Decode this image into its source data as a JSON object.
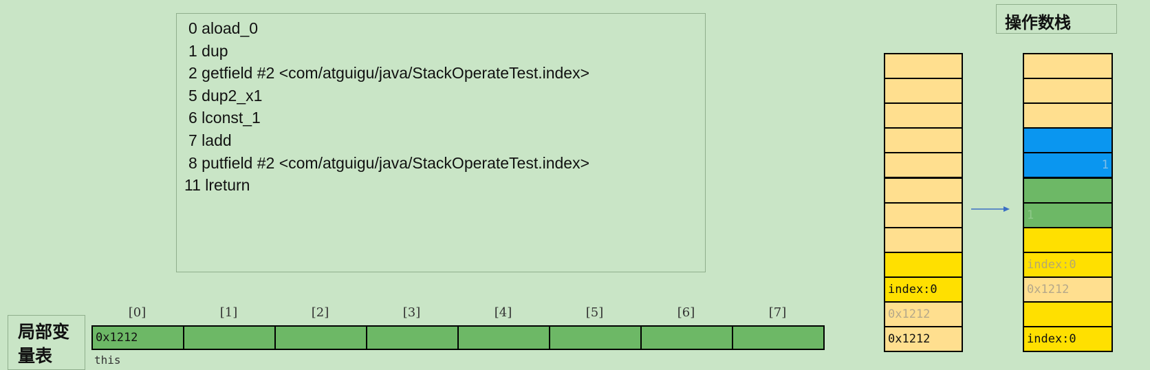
{
  "code": [
    "0 aload_0",
    "1 dup",
    "2 getfield #2 <com/atguigu/java/StackOperateTest.index>",
    "5 dup2_x1",
    "6 lconst_1",
    "7 ladd",
    "8 putfield #2 <com/atguigu/java/StackOperateTest.index>",
    "11 lreturn"
  ],
  "operand_stack_title": "操作数栈",
  "local_vars": {
    "title": "局部变量表",
    "slots": [
      {
        "index": "[0]",
        "value": "0x1212",
        "note": "this"
      },
      {
        "index": "[1]"
      },
      {
        "index": "[2]"
      },
      {
        "index": "[3]"
      },
      {
        "index": "[4]"
      },
      {
        "index": "[5]"
      },
      {
        "index": "[6]"
      },
      {
        "index": "[7]"
      }
    ],
    "color": "#6db866"
  },
  "left_stack": [
    {
      "color": "#ffdf8f"
    },
    {
      "color": "#ffdf8f"
    },
    {
      "color": "#ffdf8f"
    },
    {
      "color": "#ffdf8f"
    },
    {
      "color": "#ffdf8f"
    },
    {
      "color": "#ffdf8f"
    },
    {
      "color": "#ffdf8f"
    },
    {
      "color": "#ffdf8f"
    },
    {
      "color": "#ffe000"
    },
    {
      "color": "#ffe000",
      "text": "index:0",
      "text_color": "#111"
    },
    {
      "color": "#ffdf8f",
      "text": "0x1212",
      "text_color": "#b5a88a"
    },
    {
      "color": "#ffdf8f",
      "text": "0x1212",
      "text_color": "#111"
    }
  ],
  "right_stack": [
    {
      "color": "#ffdf8f"
    },
    {
      "color": "#ffdf8f"
    },
    {
      "color": "#ffdf8f"
    },
    {
      "color": "#0a96f0"
    },
    {
      "color": "#0a96f0",
      "text": "1",
      "text_color": "#7fbfe8",
      "align": "right"
    },
    {
      "color": "#6db866"
    },
    {
      "color": "#6db866",
      "text": "1",
      "text_color": "#8fc98a"
    },
    {
      "color": "#ffe000"
    },
    {
      "color": "#ffe000",
      "text": "index:0",
      "text_color": "#b5a870"
    },
    {
      "color": "#ffdf8f",
      "text": "0x1212",
      "text_color": "#b5a88a"
    },
    {
      "color": "#ffe000"
    },
    {
      "color": "#ffe000",
      "text": "index:0",
      "text_color": "#111"
    }
  ]
}
